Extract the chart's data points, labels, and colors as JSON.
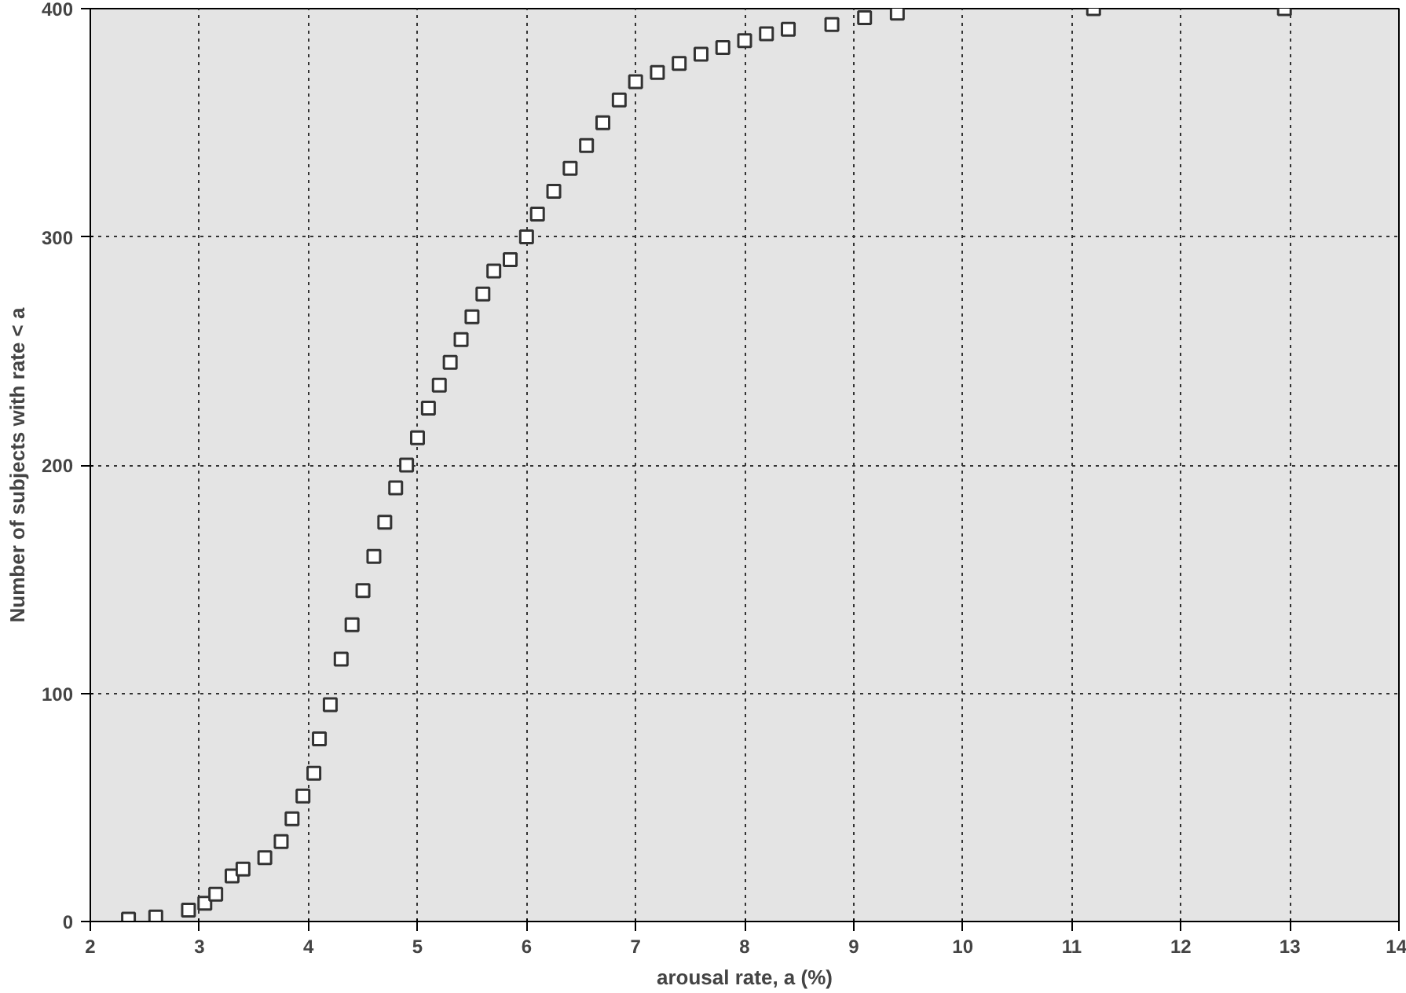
{
  "chart_data": {
    "type": "scatter",
    "xlabel": "arousal rate, a (%)",
    "ylabel": "Number of subjects with rate < a",
    "x": [
      2.35,
      2.6,
      2.9,
      3.05,
      3.15,
      3.3,
      3.4,
      3.6,
      3.75,
      3.85,
      3.95,
      4.05,
      4.1,
      4.2,
      4.3,
      4.4,
      4.5,
      4.6,
      4.7,
      4.8,
      4.9,
      5.0,
      5.1,
      5.2,
      5.3,
      5.4,
      5.5,
      5.6,
      5.7,
      5.85,
      6.0,
      6.1,
      6.25,
      6.4,
      6.55,
      6.7,
      6.85,
      7.0,
      7.2,
      7.4,
      7.6,
      7.8,
      8.0,
      8.2,
      8.4,
      8.8,
      9.1,
      9.4,
      11.2,
      12.95
    ],
    "series": [
      {
        "color": "#333333",
        "values": [
          1,
          2,
          5,
          8,
          12,
          20,
          23,
          28,
          35,
          45,
          55,
          65,
          80,
          95,
          115,
          130,
          145,
          160,
          175,
          190,
          200,
          212,
          225,
          235,
          245,
          255,
          265,
          275,
          285,
          290,
          300,
          310,
          320,
          330,
          340,
          350,
          360,
          368,
          372,
          376,
          380,
          383,
          386,
          389,
          391,
          393,
          396,
          398,
          400,
          400
        ]
      }
    ],
    "xlim": [
      2,
      14
    ],
    "ylim": [
      0,
      400
    ],
    "xticks": [
      2,
      3,
      4,
      5,
      6,
      7,
      8,
      9,
      10,
      11,
      12,
      13,
      14
    ],
    "yticks": [
      0,
      100,
      200,
      300,
      400
    ],
    "grid": true,
    "marker": "square"
  }
}
